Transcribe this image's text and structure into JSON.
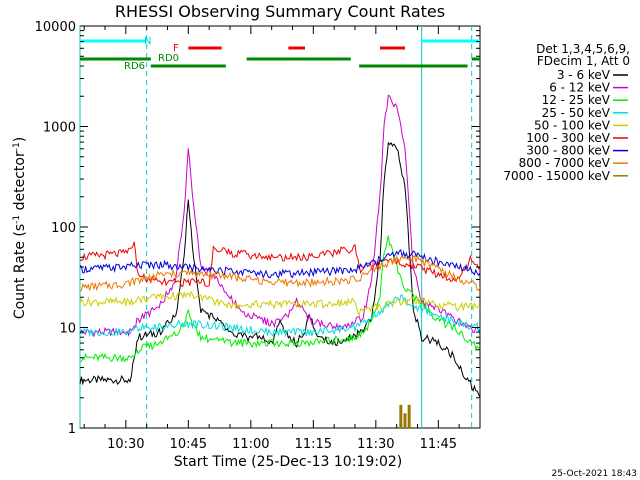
{
  "chart_data": {
    "type": "line",
    "title": "RHESSI Observing Summary Count Rates",
    "xlabel": "Start Time (25-Dec-13 10:19:02)",
    "ylabel": "Count Rate (s",
    "ylabel_sup": "-1",
    "ylabel_end": " detector",
    "ylabel_sup2": "-1",
    "ylabel_close": ")",
    "y_scale": "log",
    "ylim": [
      1,
      10000
    ],
    "xlim": [
      "10:19",
      "11:55"
    ],
    "x_ticks": [
      "10:30",
      "10:45",
      "11:00",
      "11:15",
      "11:30",
      "11:45"
    ],
    "y_ticks": [
      "1",
      "10",
      "100",
      "1000",
      "10000"
    ],
    "footer": "25-Oct-2021 18:43",
    "legend_header": [
      "Det 1,3,4,5,6,9,",
      "FDecim 1, Att 0"
    ],
    "legend_placement": "right",
    "series": [
      {
        "name": "3 - 6 keV",
        "color": "#000000",
        "x": [
          "10:19",
          "10:31",
          "10:33",
          "10:38",
          "10:42",
          "10:44",
          "10:45",
          "10:46",
          "10:48",
          "10:52",
          "10:55",
          "10:58",
          "11:02",
          "11:05",
          "11:07",
          "11:09",
          "11:11",
          "11:13",
          "11:14",
          "11:16",
          "11:20",
          "11:24",
          "11:27",
          "11:29",
          "11:31",
          "11:32",
          "11:33",
          "11:35",
          "11:36",
          "11:37",
          "11:39",
          "11:41",
          "11:45",
          "11:49",
          "11:52",
          "11:55"
        ],
        "y": [
          3,
          3,
          8,
          9,
          13,
          50,
          200,
          60,
          15,
          12,
          9,
          8,
          8,
          7,
          11,
          8,
          7,
          9,
          14,
          8,
          7,
          8,
          9,
          13,
          50,
          300,
          700,
          600,
          400,
          250,
          15,
          8,
          7,
          5,
          3,
          2
        ]
      },
      {
        "name": "6 - 12 keV",
        "color": "#cc00cc",
        "x": [
          "10:19",
          "10:31",
          "10:33",
          "10:38",
          "10:42",
          "10:44",
          "10:45",
          "10:46",
          "10:48",
          "10:52",
          "10:55",
          "10:58",
          "11:02",
          "11:05",
          "11:08",
          "11:11",
          "11:14",
          "11:17",
          "11:20",
          "11:24",
          "11:27",
          "11:29",
          "11:31",
          "11:32",
          "11:33",
          "11:35",
          "11:36",
          "11:37",
          "11:39",
          "11:41",
          "11:45",
          "11:49",
          "11:52",
          "11:55"
        ],
        "y": [
          9,
          9,
          12,
          16,
          30,
          150,
          600,
          200,
          40,
          30,
          20,
          14,
          12,
          11,
          12,
          18,
          12,
          11,
          10,
          11,
          13,
          30,
          200,
          1000,
          2000,
          1500,
          1000,
          600,
          40,
          18,
          15,
          12,
          10,
          9
        ]
      },
      {
        "name": "12 - 25 keV",
        "color": "#00ee00",
        "x": [
          "10:19",
          "10:31",
          "10:33",
          "10:38",
          "10:43",
          "10:45",
          "10:46",
          "10:48",
          "10:55",
          "11:05",
          "11:15",
          "11:25",
          "11:28",
          "11:31",
          "11:32",
          "11:33",
          "11:35",
          "11:37",
          "11:40",
          "11:45",
          "11:50",
          "11:55"
        ],
        "y": [
          5,
          5,
          6,
          7,
          9,
          15,
          10,
          8,
          7,
          7,
          7,
          8,
          10,
          20,
          60,
          75,
          40,
          25,
          18,
          12,
          9,
          6
        ]
      },
      {
        "name": "25 - 50 keV",
        "color": "#00dddd",
        "x": [
          "10:19",
          "10:31",
          "10:33",
          "10:38",
          "10:45",
          "10:55",
          "11:05",
          "11:15",
          "11:25",
          "11:30",
          "11:33",
          "11:36",
          "11:40",
          "11:45",
          "11:50",
          "11:55"
        ],
        "y": [
          9,
          9,
          10,
          10,
          11,
          10,
          9,
          9,
          10,
          13,
          17,
          20,
          16,
          13,
          11,
          10
        ]
      },
      {
        "name": "50 - 100 keV",
        "color": "#cccc00",
        "x": [
          "10:19",
          "10:31",
          "10:33",
          "10:38",
          "10:45",
          "10:50",
          "10:51",
          "10:55",
          "11:05",
          "11:15",
          "11:25",
          "11:26",
          "11:30",
          "11:35",
          "11:40",
          "11:45",
          "11:50",
          "11:55"
        ],
        "y": [
          18,
          18,
          19,
          20,
          21,
          20,
          18,
          17,
          17,
          17,
          18,
          14,
          16,
          18,
          19,
          17,
          16,
          16
        ]
      },
      {
        "name": "100 - 300 keV",
        "color": "#ee0000",
        "x": [
          "10:19",
          "10:30",
          "10:31",
          "10:32",
          "10:33",
          "10:38",
          "10:45",
          "10:50",
          "10:51",
          "10:55",
          "11:05",
          "11:15",
          "11:25",
          "11:26",
          "11:30",
          "11:35",
          "11:40",
          "11:45",
          "11:50",
          "11:53",
          "11:55"
        ],
        "y": [
          50,
          55,
          60,
          65,
          32,
          28,
          28,
          28,
          60,
          55,
          50,
          50,
          62,
          38,
          42,
          45,
          40,
          33,
          30,
          50,
          40
        ]
      },
      {
        "name": "300 - 800 keV",
        "color": "#0000dd",
        "x": [
          "10:19",
          "10:30",
          "10:33",
          "10:38",
          "10:45",
          "10:50",
          "10:55",
          "11:05",
          "11:15",
          "11:25",
          "11:30",
          "11:35",
          "11:40",
          "11:45",
          "11:50",
          "11:55"
        ],
        "y": [
          38,
          40,
          42,
          42,
          40,
          38,
          36,
          34,
          35,
          38,
          45,
          55,
          52,
          45,
          40,
          35
        ]
      },
      {
        "name": "800 - 7000 keV",
        "color": "#ee7700",
        "x": [
          "10:19",
          "10:30",
          "10:33",
          "10:38",
          "10:45",
          "10:55",
          "11:05",
          "11:15",
          "11:25",
          "11:30",
          "11:35",
          "11:40",
          "11:45",
          "11:50",
          "11:55"
        ],
        "y": [
          25,
          27,
          30,
          33,
          35,
          32,
          28,
          28,
          30,
          38,
          48,
          48,
          38,
          30,
          25
        ]
      },
      {
        "name": "7000 - 15000 keV",
        "color": "#997700",
        "x": [
          "11:36",
          "11:37",
          "11:38"
        ],
        "y": [
          1.7,
          1.4,
          1.7
        ]
      }
    ],
    "attenuator_labels": [
      "N",
      "F",
      "RD0",
      "RD6"
    ],
    "status_bars": [
      {
        "label": "N",
        "color": "#00ffff",
        "spans": [
          [
            "10:19",
            "10:35"
          ],
          [
            "11:41",
            "11:55"
          ]
        ]
      },
      {
        "label": "F",
        "color": "#ee0000",
        "spans": [
          [
            "10:45",
            "10:53"
          ],
          [
            "11:09",
            "11:13"
          ],
          [
            "11:31",
            "11:37"
          ]
        ]
      },
      {
        "label": "RD0",
        "color": "#008800",
        "spans": [
          [
            "10:19",
            "10:36"
          ],
          [
            "10:59",
            "11:24"
          ],
          [
            "11:53",
            "11:55"
          ]
        ]
      },
      {
        "label": "RD6",
        "color": "#008800",
        "spans": [
          [
            "10:36",
            "10:54"
          ],
          [
            "11:26",
            "11:52"
          ]
        ]
      }
    ],
    "vertical_markers": [
      {
        "x": "10:19",
        "color": "#00cccc",
        "style": "solid"
      },
      {
        "x": "10:35",
        "color": "#00cccc",
        "style": "dashed"
      },
      {
        "x": "11:41",
        "color": "#00cccc",
        "style": "solid"
      },
      {
        "x": "11:53",
        "color": "#00cccc",
        "style": "dashed"
      }
    ]
  }
}
